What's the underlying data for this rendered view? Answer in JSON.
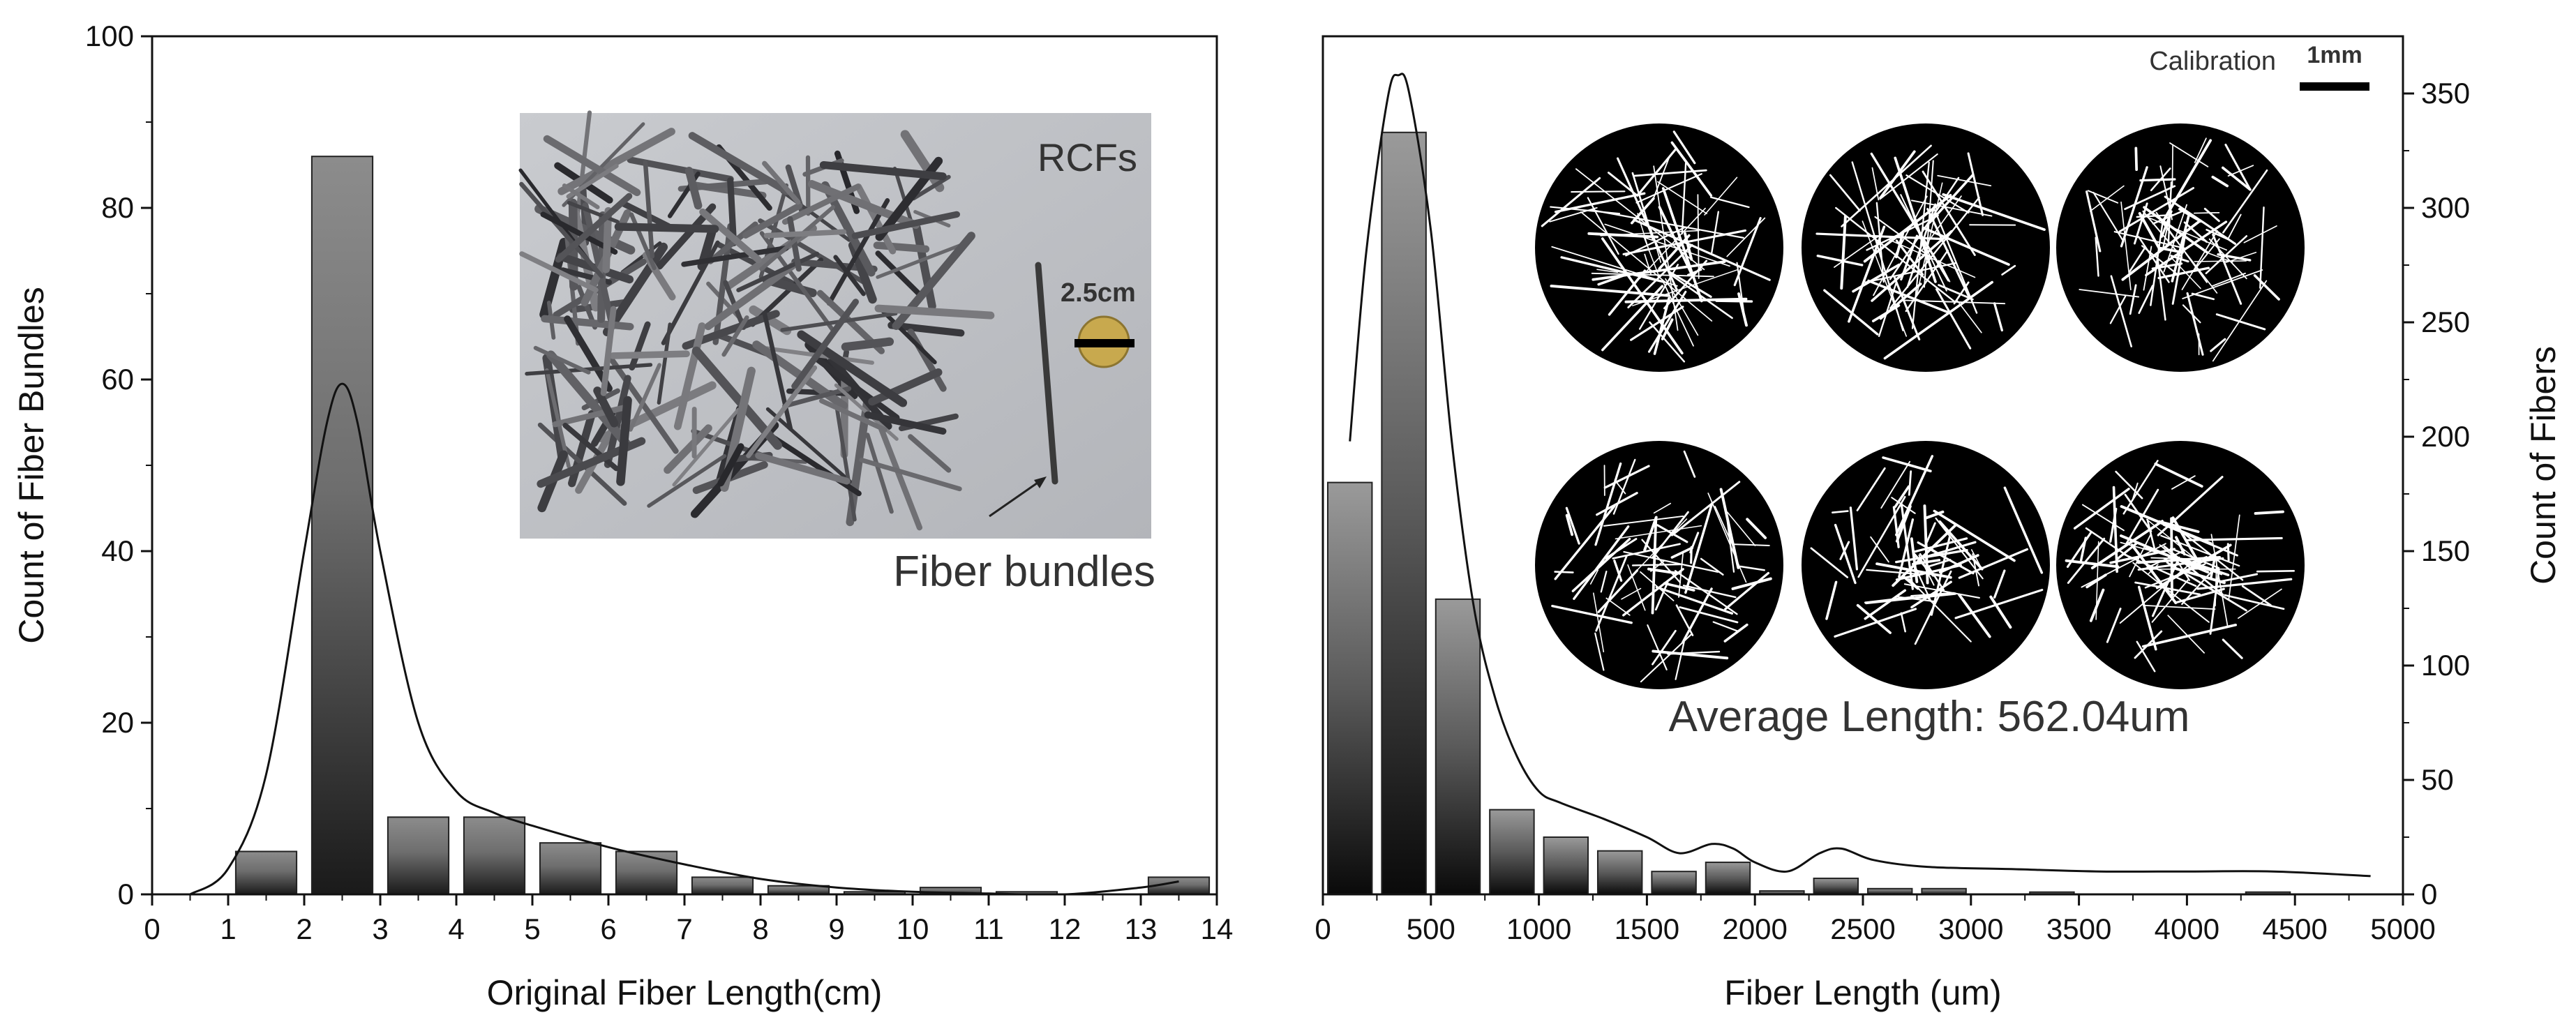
{
  "chart_data": [
    {
      "type": "bar",
      "xlabel": "Original Fiber Length(cm)",
      "ylabel": "Count of Fiber Bundles",
      "xlim": [
        0,
        14
      ],
      "ylim": [
        0,
        100
      ],
      "xticks": [
        "0",
        "1",
        "2",
        "3",
        "4",
        "5",
        "6",
        "7",
        "8",
        "9",
        "10",
        "11",
        "12",
        "13",
        "14"
      ],
      "yticks": [
        "0",
        "20",
        "40",
        "60",
        "80",
        "100"
      ],
      "bars": {
        "x": [
          1.5,
          2.5,
          3.5,
          4.5,
          5.5,
          6.5,
          7.5,
          8.5,
          9.5,
          10.5,
          11.5,
          12.5,
          13.5
        ],
        "values": [
          5,
          86,
          9,
          9,
          6,
          5,
          2,
          1,
          0.3,
          0.8,
          0.3,
          0,
          2
        ]
      },
      "fit_curve": {
        "x": [
          0.5,
          1.0,
          1.5,
          2.0,
          2.3,
          2.5,
          2.7,
          3.0,
          3.5,
          4.0,
          4.5,
          5.0,
          6.0,
          7.0,
          8.0,
          9.0,
          10.0,
          11.0,
          12.0,
          13.0,
          13.5
        ],
        "y": [
          0,
          3,
          14,
          40,
          55,
          59.5,
          55,
          40,
          20,
          12,
          9.5,
          8,
          5.5,
          3.5,
          1.8,
          0.8,
          0.3,
          0.1,
          0,
          0.8,
          1.5
        ]
      },
      "inset": {
        "labels": [
          "RCFs",
          "2.5cm",
          "Fiber bundles"
        ]
      }
    },
    {
      "type": "bar",
      "xlabel": "Fiber Length (um)",
      "ylabel": "Count of Fibers",
      "xlim": [
        0,
        5000
      ],
      "ylim": [
        0,
        375
      ],
      "xticks": [
        "0",
        "500",
        "1000",
        "1500",
        "2000",
        "2500",
        "3000",
        "3500",
        "4000",
        "4500",
        "5000"
      ],
      "yticks": [
        "0",
        "50",
        "100",
        "150",
        "200",
        "250",
        "300",
        "350"
      ],
      "bars": {
        "x": [
          125,
          375,
          625,
          875,
          1125,
          1375,
          1625,
          1875,
          2125,
          2375,
          2625,
          2875,
          3125,
          3375,
          3625,
          3875,
          4125,
          4375,
          4625
        ],
        "values": [
          180,
          333,
          129,
          37,
          25,
          19,
          10,
          14,
          1.5,
          7,
          2.5,
          2.5,
          0,
          1,
          0,
          0,
          0,
          1,
          0
        ]
      },
      "fit_curve": {
        "x": [
          125,
          200,
          300,
          350,
          400,
          500,
          600,
          700,
          800,
          900,
          1000,
          1100,
          1300,
          1500,
          1650,
          1800,
          1900,
          2000,
          2150,
          2300,
          2400,
          2550,
          2800,
          3200,
          3600,
          4000,
          4400,
          4850
        ],
        "y": [
          198,
          280,
          348,
          358,
          350,
          290,
          195,
          125,
          85,
          60,
          45,
          40,
          33,
          25,
          18,
          22,
          20,
          14,
          10,
          18,
          20,
          15,
          12,
          11,
          10,
          10,
          10,
          8
        ]
      },
      "annotation": "Average Length: 562.04um",
      "calibration": {
        "label": "Calibration",
        "scale": "1mm"
      }
    }
  ]
}
